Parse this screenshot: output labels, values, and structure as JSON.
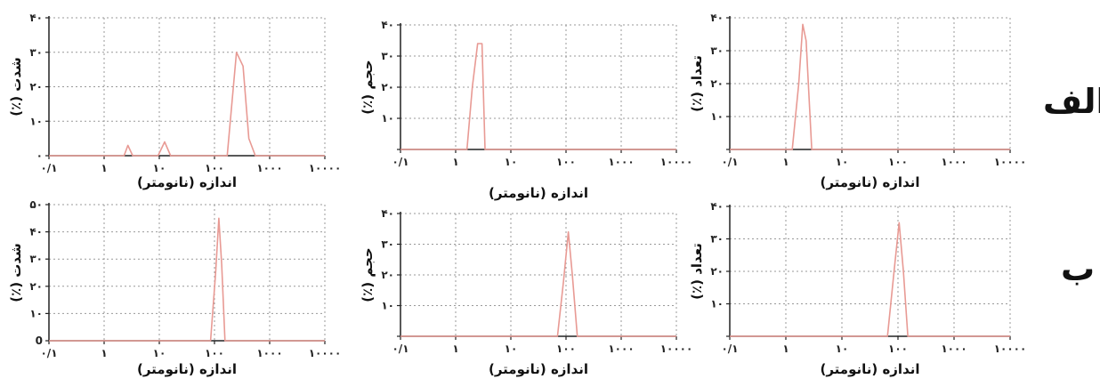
{
  "row_labels": {
    "alef": "الف",
    "be": "ب"
  },
  "chart_data": [
    {
      "id": "alef-intensity",
      "type": "line",
      "ylabel": "شدت (٪)",
      "xlabel": "اندازه (نانومتر)",
      "xscale": "log",
      "xlim": [
        0.1,
        10000
      ],
      "xticks": [
        0.1,
        1,
        10,
        100,
        1000,
        10000
      ],
      "xtick_labels": [
        "۰/۱",
        "۱",
        "۱۰",
        "۱۰۰",
        "۱۰۰۰",
        "۱۰۰۰۰"
      ],
      "ylim": [
        0,
        40
      ],
      "yticks": [
        0,
        10,
        20,
        30,
        40
      ],
      "ytick_labels": [
        "۰",
        "۱۰",
        "۲۰",
        "۳۰",
        "۴۰"
      ],
      "grid": true,
      "line_color": "#e89a94",
      "series": [
        {
          "x": [
            0.1,
            2.3,
            2.7,
            3.3,
            4.0,
            9.5,
            12.5,
            16.0,
            20.0,
            170,
            250,
            330,
            420,
            550,
            10000
          ],
          "y": [
            0,
            0,
            3,
            0,
            0,
            0,
            4,
            0,
            0,
            0,
            30,
            26,
            5,
            0,
            0
          ]
        }
      ]
    },
    {
      "id": "alef-volume",
      "type": "line",
      "ylabel": "حجم (٪)",
      "xlabel": "اندازه (نانومتر)",
      "xscale": "log",
      "xlim": [
        0.1,
        10000
      ],
      "xticks": [
        0.1,
        1,
        10,
        100,
        1000,
        10000
      ],
      "xtick_labels": [
        "۰/۱",
        "۱",
        "۱۰",
        "۱۰۰",
        "۱۰۰۰",
        "۱۰۰۰۰"
      ],
      "ylim": [
        0,
        40
      ],
      "yticks": [
        0,
        10,
        20,
        30,
        40
      ],
      "ytick_labels": [
        "",
        "۱۰",
        "۲۰",
        "۳۰",
        "۴۰"
      ],
      "grid": true,
      "line_color": "#e89a94",
      "series": [
        {
          "x": [
            0.1,
            1.6,
            2.0,
            2.5,
            3.0,
            3.4,
            10000
          ],
          "y": [
            0,
            0,
            20,
            34,
            34,
            0,
            0
          ]
        }
      ]
    },
    {
      "id": "alef-number",
      "type": "line",
      "ylabel": "تعداد (٪)",
      "xlabel": "اندازه (نانومتر)",
      "xscale": "log",
      "xlim": [
        0.1,
        10000
      ],
      "xticks": [
        0.1,
        1,
        10,
        100,
        1000,
        10000
      ],
      "xtick_labels": [
        "۰/۱",
        "۱",
        "۱۰",
        "۱۰۰",
        "۱۰۰۰",
        "۱۰۰۰۰"
      ],
      "ylim": [
        0,
        40
      ],
      "yticks": [
        0,
        10,
        20,
        30,
        40
      ],
      "ytick_labels": [
        "",
        "۱۰",
        "۲۰",
        "۳۰",
        "۴۰"
      ],
      "grid": true,
      "line_color": "#e89a94",
      "series": [
        {
          "x": [
            0.1,
            1.3,
            1.7,
            2.0,
            2.3,
            2.9,
            10000
          ],
          "y": [
            0,
            0,
            20,
            38,
            33,
            0,
            0
          ]
        }
      ]
    },
    {
      "id": "be-intensity",
      "type": "line",
      "ylabel": "شدت (٪)",
      "xlabel": "اندازه (نانومتر)",
      "xscale": "log",
      "xlim": [
        0.1,
        10000
      ],
      "xticks": [
        0.1,
        1,
        10,
        100,
        1000,
        10000
      ],
      "xtick_labels": [
        "۰/۱",
        "۱",
        "۱۰",
        "۱۰۰",
        "۱۰۰۰",
        "۱۰۰۰۰"
      ],
      "ylim": [
        0,
        50
      ],
      "yticks": [
        0,
        10,
        20,
        30,
        40,
        50
      ],
      "ytick_labels": [
        "0",
        "۱۰",
        "۲۰",
        "۳۰",
        "۴۰",
        "۵۰"
      ],
      "grid": true,
      "line_color": "#e89a94",
      "series": [
        {
          "x": [
            0.1,
            85,
            105,
            120,
            135,
            155,
            10000
          ],
          "y": [
            0,
            0,
            25,
            45,
            28,
            0,
            0
          ]
        }
      ]
    },
    {
      "id": "be-volume",
      "type": "line",
      "ylabel": "حجم (٪)",
      "xlabel": "اندازه (نانومتر)",
      "xscale": "log",
      "xlim": [
        0.1,
        10000
      ],
      "xticks": [
        0.1,
        1,
        10,
        100,
        1000,
        10000
      ],
      "xtick_labels": [
        "۰/۱",
        "۱",
        "۱۰",
        "۱۰۰",
        "۱۰۰۰",
        "۱۰۰۰۰"
      ],
      "ylim": [
        0,
        40
      ],
      "yticks": [
        0,
        10,
        20,
        30,
        40
      ],
      "ytick_labels": [
        "",
        "۱۰",
        "۲۰",
        "۳۰",
        "۴۰"
      ],
      "grid": true,
      "line_color": "#e89a94",
      "series": [
        {
          "x": [
            0.1,
            70,
            90,
            110,
            130,
            160,
            10000
          ],
          "y": [
            0,
            0,
            18,
            34,
            20,
            0,
            0
          ]
        }
      ]
    },
    {
      "id": "be-number",
      "type": "line",
      "ylabel": "تعداد (٪)",
      "xlabel": "اندازه (نانومتر)",
      "xscale": "log",
      "xlim": [
        0.1,
        10000
      ],
      "xticks": [
        0.1,
        1,
        10,
        100,
        1000,
        10000
      ],
      "xtick_labels": [
        "۰/۱",
        "۱",
        "۱۰",
        "۱۰۰",
        "۱۰۰۰",
        "۱۰۰۰۰"
      ],
      "ylim": [
        0,
        40
      ],
      "yticks": [
        0,
        10,
        20,
        30,
        40
      ],
      "ytick_labels": [
        "",
        "۱۰",
        "۲۰",
        "۳۰",
        "۴۰"
      ],
      "grid": true,
      "line_color": "#e89a94",
      "series": [
        {
          "x": [
            0.1,
            65,
            85,
            105,
            125,
            150,
            10000
          ],
          "y": [
            0,
            0,
            20,
            35,
            20,
            0,
            0
          ]
        }
      ]
    }
  ]
}
